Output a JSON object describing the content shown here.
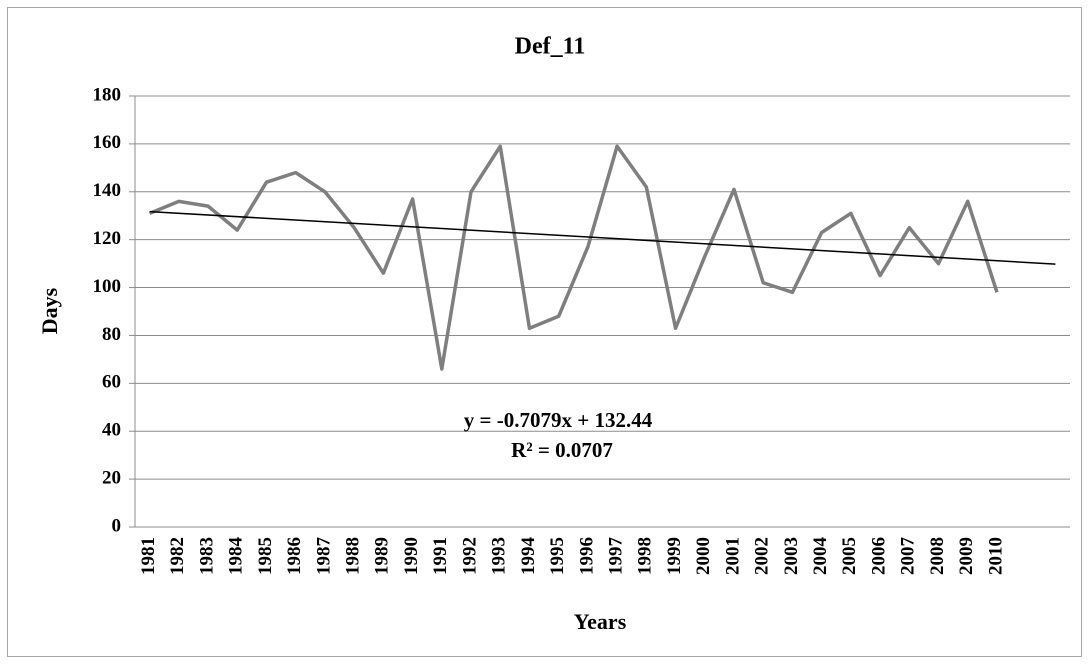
{
  "chart_data": {
    "type": "line",
    "title": "Def_11",
    "x_label": "Years",
    "y_label": "Days",
    "categories": [
      "1981",
      "1982",
      "1983",
      "1984",
      "1985",
      "1986",
      "1987",
      "1988",
      "1989",
      "1990",
      "1991",
      "1992",
      "1993",
      "1994",
      "1995",
      "1996",
      "1997",
      "1998",
      "1999",
      "2000",
      "2001",
      "2002",
      "2003",
      "2004",
      "2005",
      "2006",
      "2007",
      "2008",
      "2009",
      "2010",
      null,
      null
    ],
    "series": [
      {
        "color": "#7f7f7f",
        "values": [
          131,
          136,
          134,
          124,
          144,
          148,
          140,
          125,
          106,
          137,
          66,
          140,
          159,
          83,
          88,
          117,
          159,
          142,
          83,
          113,
          141,
          102,
          98,
          123,
          131,
          105,
          125,
          110,
          136,
          98,
          null,
          null
        ]
      }
    ],
    "trendline": {
      "slope": -0.7079,
      "intercept": 132.44,
      "color": "#000000",
      "label": "y = -0.7079x + 132.44",
      "r2_label": "R² = 0.0707"
    },
    "ylim": [
      0,
      180
    ],
    "yticks": [
      0,
      20,
      40,
      60,
      80,
      100,
      120,
      140,
      160,
      180
    ],
    "grid": true
  }
}
